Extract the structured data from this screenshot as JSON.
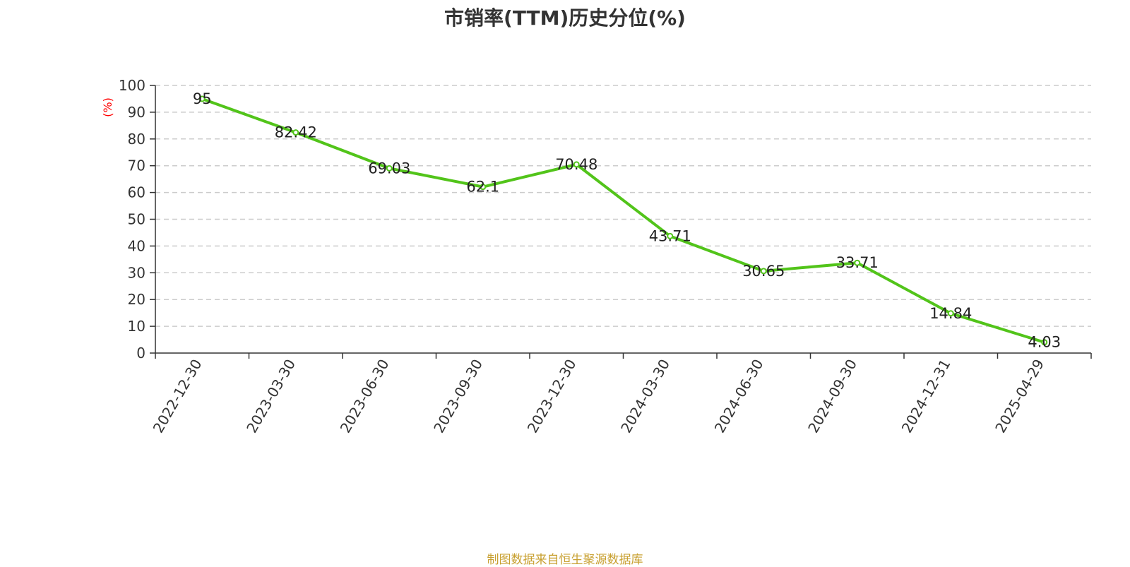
{
  "chart_data": {
    "type": "line",
    "title": "市销率(TTM)历史分位(%)",
    "ylabel": "(%)",
    "xlabel": "",
    "ylim": [
      0,
      100
    ],
    "yticks": [
      0,
      10,
      20,
      30,
      40,
      50,
      60,
      70,
      80,
      90,
      100
    ],
    "categories": [
      "2022-12-30",
      "2023-03-30",
      "2023-06-30",
      "2023-09-30",
      "2023-12-30",
      "2024-03-30",
      "2024-06-30",
      "2024-09-30",
      "2024-12-31",
      "2025-04-29"
    ],
    "series": [
      {
        "values": [
          95,
          82.42,
          69.03,
          62.1,
          70.48,
          43.71,
          30.65,
          33.71,
          14.84,
          4.03
        ]
      }
    ],
    "data_labels": [
      "95",
      "82.42",
      "69.03",
      "62.1",
      "70.48",
      "43.71",
      "30.65",
      "33.71",
      "14.84",
      "4.03"
    ],
    "grid": true,
    "colors": {
      "line": "#52c41a",
      "ylabel": "#ff0000",
      "grid": "#cccccc",
      "axis": "#333333"
    }
  },
  "footer": {
    "source": "制图数据来自恒生聚源数据库",
    "color": "#c8a030"
  }
}
